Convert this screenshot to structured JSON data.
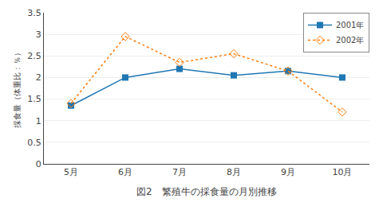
{
  "chart_data": {
    "type": "line",
    "title": "図2　繁殖牛の採食量の月別推移",
    "y_label": "採食量（体重比：％）",
    "categories": [
      "5月",
      "6月",
      "7月",
      "8月",
      "9月",
      "10月"
    ],
    "series": [
      {
        "name": "2001年",
        "values": [
          1.35,
          2.0,
          2.2,
          2.05,
          2.15,
          2.0
        ],
        "marker": "square",
        "line_style": "solid"
      },
      {
        "name": "2002年",
        "values": [
          1.4,
          2.95,
          2.35,
          2.55,
          2.15,
          1.2
        ],
        "marker": "diamond-open",
        "line_style": "dot"
      }
    ],
    "ylim": [
      0,
      3.5
    ],
    "yticks": [
      0,
      0.5,
      1,
      1.5,
      2,
      2.5,
      3,
      3.5
    ],
    "grid": true,
    "legend": "upper right"
  }
}
